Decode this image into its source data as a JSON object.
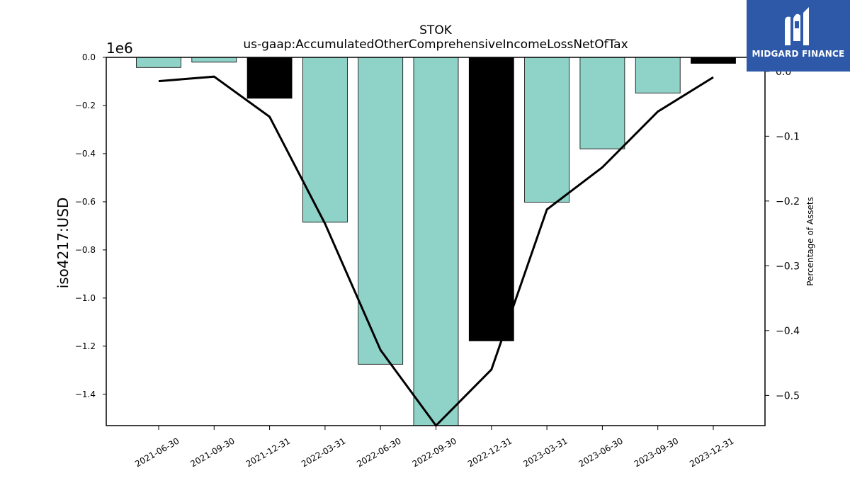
{
  "chart_data": {
    "type": "bar",
    "title": "STOK",
    "subtitle": "us-gaap:AccumulatedOtherComprehensiveIncomeLossNetOfTax",
    "ylabel": "iso4217:USD",
    "ylabel_right": "Percentage of Assets",
    "y_offset_label": "1e6",
    "categories": [
      "2021-06-30",
      "2021-09-30",
      "2021-12-31",
      "2022-03-31",
      "2022-06-30",
      "2022-09-30",
      "2022-12-31",
      "2023-03-31",
      "2023-06-30",
      "2023-09-30",
      "2023-12-31"
    ],
    "values": [
      -42000,
      -20000,
      -170000,
      -685000,
      -1275000,
      -1530000,
      -1178000,
      -602000,
      -380000,
      -148000,
      -25000
    ],
    "bar_colors": [
      "#8fd3c8",
      "#8fd3c8",
      "#000000",
      "#8fd3c8",
      "#8fd3c8",
      "#8fd3c8",
      "#000000",
      "#8fd3c8",
      "#8fd3c8",
      "#8fd3c8",
      "#000000"
    ],
    "ylim": [
      -1530000,
      0
    ],
    "yticks": [
      0.0,
      -0.2,
      -0.4,
      -0.6,
      -0.8,
      -1.0,
      -1.2,
      -1.4
    ],
    "ytick_labels": [
      "0.0",
      "−0.2",
      "−0.4",
      "−0.6",
      "−0.8",
      "−1.0",
      "−1.2",
      "−1.4"
    ],
    "line_series": {
      "name": "Percentage of Assets",
      "axis": "right",
      "values": [
        -0.015,
        -0.008,
        -0.07,
        -0.235,
        -0.43,
        -0.555,
        -0.46,
        -0.213,
        -0.148,
        -0.062,
        -0.009
      ],
      "color": "#000000"
    },
    "y2lim": [
      -0.5466,
      0.0217
    ],
    "y2ticks": [
      0.0,
      -0.1,
      -0.2,
      -0.3,
      -0.4,
      -0.5
    ],
    "y2tick_labels": [
      "0.0",
      "−0.1",
      "−0.2",
      "−0.3",
      "−0.4",
      "−0.5"
    ],
    "grid": false
  },
  "logo": {
    "text": "MIDGARD FINANCE",
    "color": "#2d59a8"
  }
}
